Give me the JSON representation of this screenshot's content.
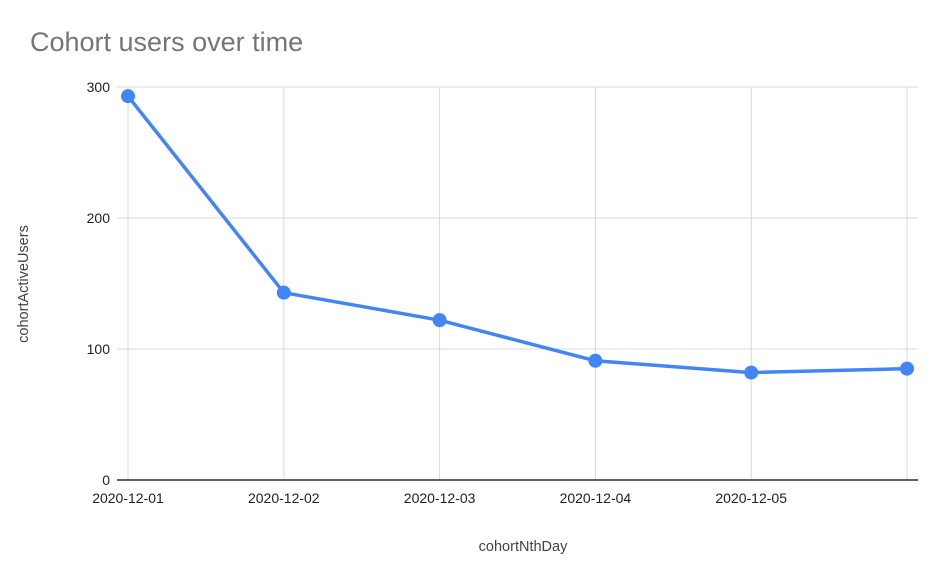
{
  "page": {
    "background_color": "#ffffff"
  },
  "chart_data": {
    "type": "line",
    "title": "Cohort users over time",
    "xlabel": "cohortNthDay",
    "ylabel": "cohortActiveUsers",
    "x_tick_labels": [
      "2020-12-01",
      "2020-12-02",
      "2020-12-03",
      "2020-12-04",
      "2020-12-05",
      ""
    ],
    "series": [
      {
        "name": "cohortActiveUsers",
        "values": [
          293,
          143,
          122,
          91,
          82,
          85
        ]
      }
    ],
    "ylim": [
      0,
      300
    ],
    "yticks": [
      0,
      100,
      200,
      300
    ],
    "grid": true,
    "legend": "none",
    "marker": "circle",
    "colors": {
      "line": "#4285f4",
      "marker": "#4285f4",
      "title_text": "#757575",
      "axis_title_text": "#424242",
      "tick_text": "#222222",
      "gridline": "#d9d9d9",
      "axis_line": "#616161",
      "background": "#ffffff"
    }
  }
}
